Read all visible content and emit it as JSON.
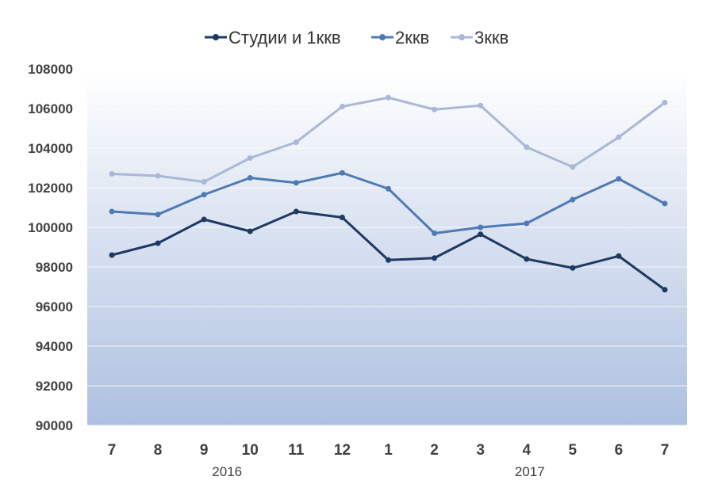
{
  "chart_data": {
    "type": "line",
    "title": "",
    "xlabel": "",
    "ylabel": "",
    "x": [
      "7",
      "8",
      "9",
      "10",
      "11",
      "12",
      "1",
      "2",
      "3",
      "4",
      "5",
      "6",
      "7"
    ],
    "x_groups": [
      {
        "label": "2016",
        "from": 0,
        "to": 5
      },
      {
        "label": "2017",
        "from": 6,
        "to": 12
      }
    ],
    "ylim": [
      90000,
      108000
    ],
    "yticks": [
      90000,
      92000,
      94000,
      96000,
      98000,
      100000,
      102000,
      104000,
      106000,
      108000
    ],
    "ytick_labels": [
      "90000",
      "92000",
      "94000",
      "96000",
      "98000",
      "100000",
      "102000",
      "104000",
      "106000",
      "108000"
    ],
    "grid": true,
    "legend_position": "top",
    "series": [
      {
        "name": "Студии и 1ккв",
        "color": "#1f3864",
        "values": [
          98600,
          99200,
          100400,
          99800,
          100800,
          100500,
          98350,
          98450,
          99650,
          98400,
          97950,
          98550,
          96850
        ]
      },
      {
        "name": "2ккв",
        "color": "#4e7ab5",
        "values": [
          100800,
          100650,
          101650,
          102500,
          102250,
          102750,
          101950,
          99700,
          100000,
          100200,
          101400,
          102450,
          101200
        ]
      },
      {
        "name": "3ккв",
        "color": "#aab8d6",
        "values": [
          102700,
          102600,
          102300,
          103500,
          104300,
          106100,
          106550,
          105950,
          106150,
          104050,
          103050,
          104550,
          106300
        ]
      }
    ]
  }
}
